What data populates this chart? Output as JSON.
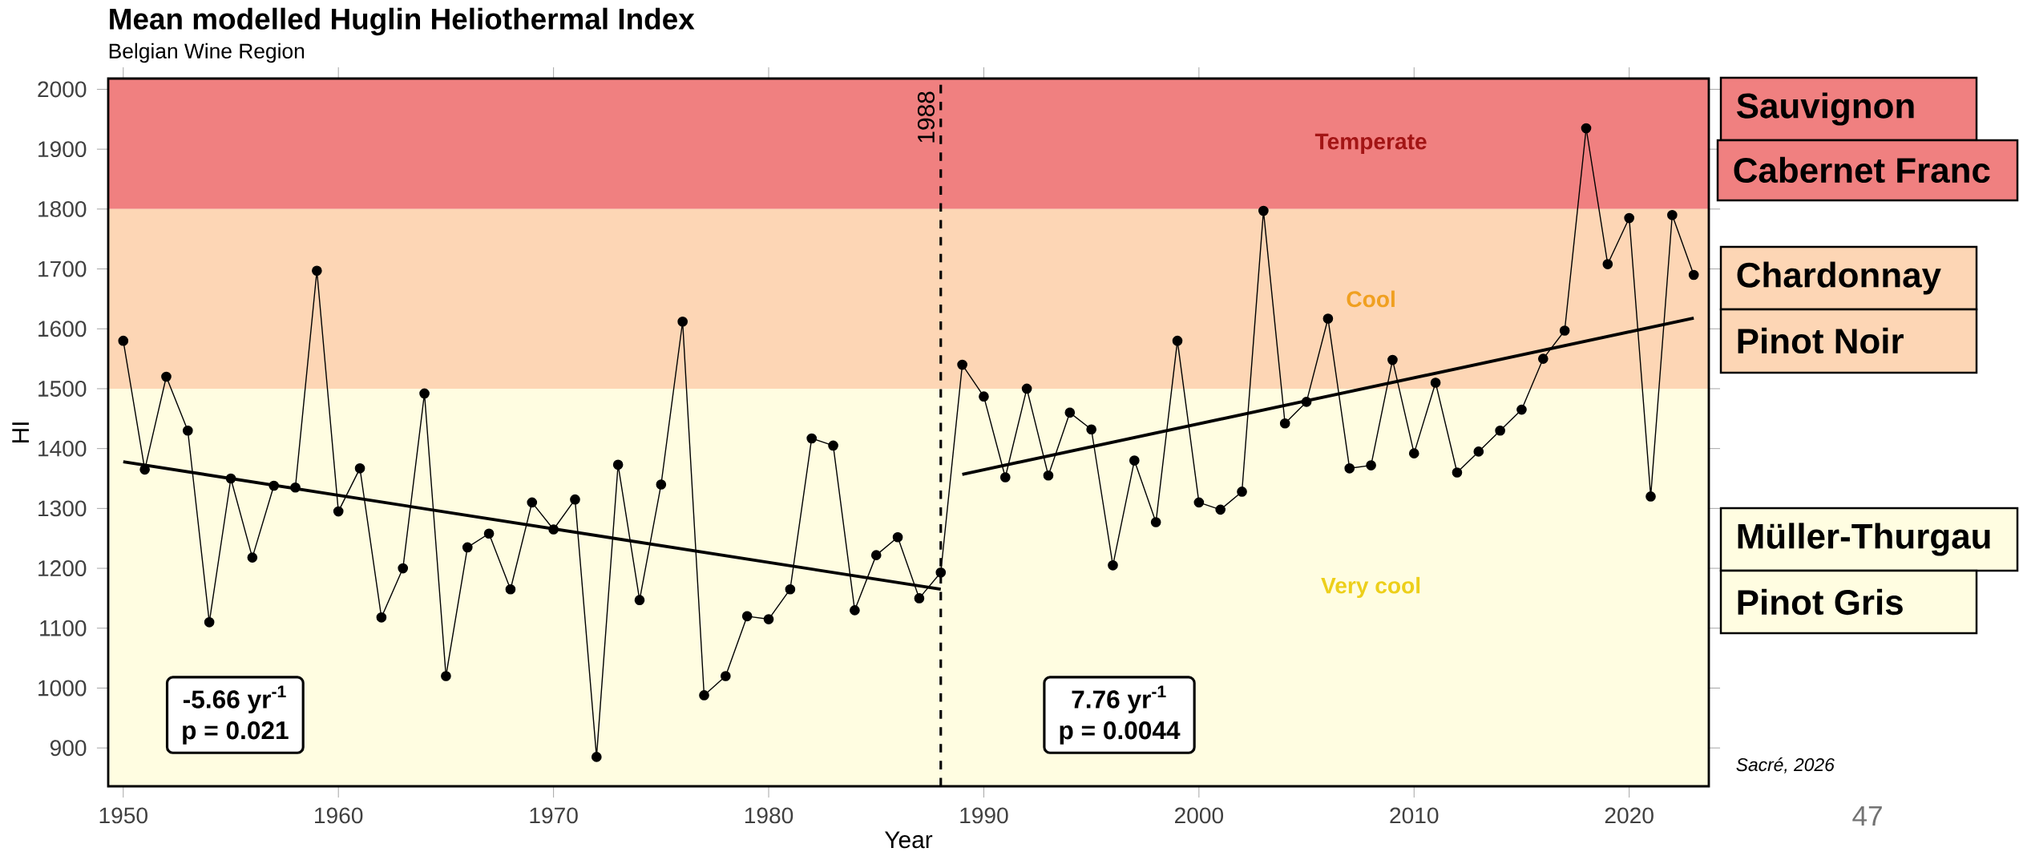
{
  "chart_data": {
    "type": "line",
    "title": "Mean modelled Huglin Heliothermal Index",
    "subtitle": "Belgian Wine Region",
    "xlabel": "Year",
    "ylabel": "HI",
    "x": [
      1950,
      1951,
      1952,
      1953,
      1954,
      1955,
      1956,
      1957,
      1958,
      1959,
      1960,
      1961,
      1962,
      1963,
      1964,
      1965,
      1966,
      1967,
      1968,
      1969,
      1970,
      1971,
      1972,
      1973,
      1974,
      1975,
      1976,
      1977,
      1978,
      1979,
      1980,
      1981,
      1982,
      1983,
      1984,
      1985,
      1986,
      1987,
      1988,
      1989,
      1990,
      1991,
      1992,
      1993,
      1994,
      1995,
      1996,
      1997,
      1998,
      1999,
      2000,
      2001,
      2002,
      2003,
      2004,
      2005,
      2006,
      2007,
      2008,
      2009,
      2010,
      2011,
      2012,
      2013,
      2014,
      2015,
      2016,
      2017,
      2018,
      2019,
      2020,
      2021,
      2022,
      2023
    ],
    "series": [
      {
        "color": "#000000",
        "values": [
          1580,
          1365,
          1520,
          1430,
          1110,
          1350,
          1218,
          1338,
          1335,
          1697,
          1295,
          1367,
          1118,
          1200,
          1492,
          1020,
          1235,
          1258,
          1165,
          1310,
          1265,
          1315,
          885,
          1373,
          1147,
          1340,
          1612,
          988,
          1020,
          1120,
          1115,
          1165,
          1417,
          1405,
          1130,
          1222,
          1252,
          1150,
          1193,
          1540,
          1487,
          1352,
          1500,
          1355,
          1460,
          1432,
          1205,
          1380,
          1277,
          1580,
          1310,
          1298,
          1328,
          1797,
          1442,
          1478,
          1617,
          1367,
          1372,
          1548,
          1392,
          1510,
          1360,
          1395,
          1430,
          1465,
          1550,
          1597,
          1935,
          1708,
          1785,
          1320,
          1790,
          1690
        ]
      },
      {
        "type": "line",
        "color": "#000000",
        "marker": "none",
        "x": [
          1950,
          1988
        ],
        "values": [
          1378,
          1165
        ]
      },
      {
        "type": "line",
        "color": "#000000",
        "marker": "none",
        "x": [
          1989,
          2023
        ],
        "values": [
          1357,
          1618
        ]
      }
    ],
    "marker": "circle",
    "line_style": "solid",
    "xlim": [
      1949.3,
      2023.7
    ],
    "ylim": [
      836,
      2018
    ],
    "xticks": [
      1950,
      1960,
      1970,
      1980,
      1990,
      2000,
      2010,
      2020
    ],
    "yticks": [
      900,
      1000,
      1100,
      1200,
      1300,
      1400,
      1500,
      1600,
      1700,
      1800,
      1900,
      2000
    ],
    "bands": [
      {
        "axis": "y",
        "from": 1800,
        "to": 2018,
        "label": "Temperate",
        "color": "#f08080"
      },
      {
        "axis": "y",
        "from": 1500,
        "to": 1800,
        "label": "Cool",
        "color": "#fdd6b5"
      },
      {
        "axis": "y",
        "from": 836,
        "to": 1500,
        "label": "Very cool",
        "color": "#fffde1"
      }
    ],
    "ref_lines": [
      {
        "axis": "x",
        "value": 1988,
        "label": "1988",
        "line_style": "dashed"
      }
    ],
    "annotations": [
      "-5.66 yr$^{-1}$",
      "p = 0.021",
      "7.76 yr$^{-1}$",
      "p = 0.0044",
      "Sauvignon",
      "Cabernet Franc",
      "Chardonnay",
      "Pinot Noir",
      "Müller-Thurgau",
      "Pinot Gris",
      "*Sacré, 2026*",
      "47"
    ]
  }
}
